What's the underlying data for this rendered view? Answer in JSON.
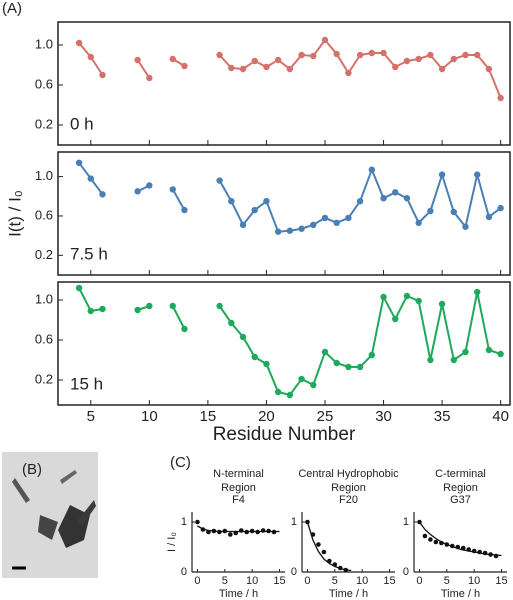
{
  "panel_labels": [
    "(A)",
    "(B)",
    "(C)"
  ],
  "chart_data": [
    {
      "type": "line",
      "label": "0 h",
      "color": "#d4716b",
      "x": [
        4,
        5,
        6,
        7,
        8,
        9,
        10,
        11,
        12,
        13,
        14,
        15,
        16,
        17,
        18,
        19,
        20,
        21,
        22,
        23,
        24,
        25,
        26,
        27,
        28,
        29,
        30,
        31,
        32,
        33,
        34,
        35,
        36,
        37,
        38,
        39,
        40
      ],
      "values": [
        1.02,
        0.88,
        0.7,
        null,
        null,
        0.85,
        0.67,
        null,
        0.86,
        0.79,
        null,
        null,
        0.9,
        0.77,
        0.76,
        0.84,
        0.78,
        0.85,
        0.76,
        0.9,
        0.89,
        1.05,
        0.91,
        0.72,
        0.9,
        0.92,
        0.92,
        0.78,
        0.84,
        0.86,
        0.9,
        0.76,
        0.86,
        0.9,
        0.9,
        0.76,
        0.47
      ],
      "xlim": [
        2.2,
        40.8
      ],
      "xticks": [
        5,
        10,
        15,
        20,
        25,
        30,
        35,
        40
      ],
      "ylim": [
        0,
        1.23
      ],
      "yticks": [
        0.2,
        0.6,
        {
          "value": 1,
          "label": "1.0"
        }
      ]
    },
    {
      "type": "line",
      "label": "7.5 h",
      "color": "#4a7fb5",
      "ylabel": "I(t) / I₀",
      "x": [
        4,
        5,
        6,
        7,
        8,
        9,
        10,
        11,
        12,
        13,
        14,
        15,
        16,
        17,
        18,
        19,
        20,
        21,
        22,
        23,
        24,
        25,
        26,
        27,
        28,
        29,
        30,
        31,
        32,
        33,
        34,
        35,
        36,
        37,
        38,
        39,
        40
      ],
      "values": [
        1.14,
        0.98,
        0.82,
        null,
        null,
        0.85,
        0.91,
        null,
        0.87,
        0.66,
        null,
        null,
        0.96,
        0.75,
        0.51,
        0.66,
        0.75,
        0.44,
        0.45,
        0.47,
        0.51,
        0.58,
        0.53,
        0.58,
        0.75,
        1.07,
        0.78,
        0.84,
        0.78,
        0.53,
        0.65,
        1.02,
        0.64,
        0.49,
        1.02,
        0.59,
        0.68
      ],
      "xlim": [
        2.2,
        40.8
      ],
      "xticks": [
        5,
        10,
        15,
        20,
        25,
        30,
        35,
        40
      ],
      "ylim": [
        0,
        1.25
      ],
      "yticks": [
        0.2,
        0.6,
        {
          "value": 1,
          "label": "1.0"
        }
      ]
    },
    {
      "type": "line",
      "label": "15 h",
      "color": "#1eaa5a",
      "xlabel": "Residue Number",
      "x": [
        4,
        5,
        6,
        7,
        8,
        9,
        10,
        11,
        12,
        13,
        14,
        15,
        16,
        17,
        18,
        19,
        20,
        21,
        22,
        23,
        24,
        25,
        26,
        27,
        28,
        29,
        30,
        31,
        32,
        33,
        34,
        35,
        36,
        37,
        38,
        39,
        40
      ],
      "values": [
        1.12,
        0.89,
        0.91,
        null,
        null,
        0.9,
        0.94,
        null,
        0.94,
        0.71,
        null,
        null,
        0.94,
        0.77,
        0.63,
        0.43,
        0.36,
        0.08,
        0.05,
        0.21,
        0.15,
        0.48,
        0.37,
        0.33,
        0.33,
        0.45,
        1.03,
        0.81,
        1.04,
        0.99,
        0.4,
        0.96,
        0.4,
        0.48,
        1.08,
        0.5,
        0.46
      ],
      "xlim": [
        2.2,
        40.8
      ],
      "xticks": [
        5,
        10,
        15,
        20,
        25,
        30,
        35,
        40
      ],
      "ylim": [
        -0.05,
        1.18
      ],
      "yticks": [
        0.2,
        0.6,
        {
          "value": 1,
          "label": "1.0"
        }
      ]
    },
    {
      "type": "scatter",
      "title": [
        "N-terminal",
        "Region"
      ],
      "subtitle": "F4",
      "ylabel": "I / I₀",
      "xlabel": "Time / h",
      "color": "#111",
      "x": [
        0,
        1,
        2,
        3,
        4,
        5,
        6,
        7,
        8,
        9,
        10,
        11,
        12,
        13,
        14
      ],
      "values": [
        1.0,
        0.85,
        0.8,
        0.82,
        0.8,
        0.82,
        0.75,
        0.78,
        0.83,
        0.8,
        0.82,
        0.8,
        0.83,
        0.82,
        0.8
      ],
      "fit": {
        "x": [
          0,
          1,
          2,
          3,
          4,
          5,
          6,
          7,
          8,
          9,
          10,
          11,
          12,
          13,
          14,
          15
        ],
        "values": [
          0.92,
          0.86,
          0.83,
          0.82,
          0.81,
          0.81,
          0.81,
          0.81,
          0.81,
          0.81,
          0.81,
          0.81,
          0.81,
          0.81,
          0.81,
          0.81
        ]
      },
      "xlim": [
        -1,
        16
      ],
      "xticks": [
        0,
        5,
        10,
        15
      ],
      "ylim": [
        0,
        1.2
      ],
      "yticks": [
        0,
        1
      ]
    },
    {
      "type": "scatter",
      "title": [
        "Central Hydrophobic",
        "Region"
      ],
      "subtitle": "F20",
      "xlabel": "Time / h",
      "color": "#111",
      "x": [
        0,
        1,
        2,
        3,
        4,
        5,
        6,
        7
      ],
      "values": [
        1.0,
        0.75,
        0.55,
        0.4,
        0.22,
        0.15,
        0.08,
        0.04
      ],
      "fit": {
        "x": [
          0,
          1,
          2,
          3,
          4,
          5,
          6,
          7,
          8
        ],
        "values": [
          1.0,
          0.64,
          0.41,
          0.26,
          0.17,
          0.11,
          0.07,
          0.04,
          0.03
        ]
      },
      "xlim": [
        -1,
        16
      ],
      "xticks": [
        0,
        5,
        10,
        15
      ],
      "ylim": [
        0,
        1.2
      ],
      "yticks": [
        0,
        1
      ]
    },
    {
      "type": "scatter",
      "title": [
        "C-terminal",
        "Region"
      ],
      "subtitle": "G37",
      "xlabel": "Time / h",
      "color": "#111",
      "x": [
        0,
        1,
        2,
        3,
        4,
        5,
        6,
        7,
        8,
        9,
        10,
        11,
        12,
        13,
        14
      ],
      "values": [
        1.0,
        0.72,
        0.65,
        0.6,
        0.58,
        0.55,
        0.52,
        0.5,
        0.48,
        0.45,
        0.42,
        0.4,
        0.38,
        0.35,
        0.32
      ],
      "fit": {
        "x": [
          0,
          1,
          2,
          3,
          4,
          5,
          6,
          7,
          8,
          9,
          10,
          11,
          12,
          13,
          14,
          15
        ],
        "values": [
          1.0,
          0.85,
          0.75,
          0.67,
          0.6,
          0.55,
          0.51,
          0.47,
          0.44,
          0.42,
          0.4,
          0.38,
          0.36,
          0.35,
          0.34,
          0.33
        ]
      },
      "xlim": [
        -1,
        16
      ],
      "xticks": [
        0,
        5,
        10,
        15
      ],
      "ylim": [
        0,
        1.2
      ],
      "yticks": [
        0,
        1
      ]
    }
  ]
}
